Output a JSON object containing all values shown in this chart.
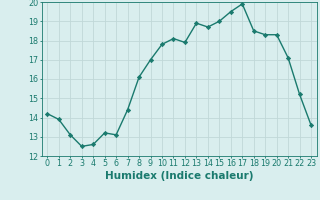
{
  "x": [
    0,
    1,
    2,
    3,
    4,
    5,
    6,
    7,
    8,
    9,
    10,
    11,
    12,
    13,
    14,
    15,
    16,
    17,
    18,
    19,
    20,
    21,
    22,
    23
  ],
  "y": [
    14.2,
    13.9,
    13.1,
    12.5,
    12.6,
    13.2,
    13.1,
    14.4,
    16.1,
    17.0,
    17.8,
    18.1,
    17.9,
    18.9,
    18.7,
    19.0,
    19.5,
    19.9,
    18.5,
    18.3,
    18.3,
    17.1,
    15.2,
    13.6
  ],
  "line_color": "#1a7a6e",
  "marker": "D",
  "marker_size": 2.2,
  "bg_color": "#d9eeee",
  "grid_color": "#c0d8d8",
  "xlabel": "Humidex (Indice chaleur)",
  "xlim": [
    -0.5,
    23.5
  ],
  "ylim": [
    12,
    20
  ],
  "yticks": [
    12,
    13,
    14,
    15,
    16,
    17,
    18,
    19,
    20
  ],
  "xticks": [
    0,
    1,
    2,
    3,
    4,
    5,
    6,
    7,
    8,
    9,
    10,
    11,
    12,
    13,
    14,
    15,
    16,
    17,
    18,
    19,
    20,
    21,
    22,
    23
  ],
  "tick_color": "#1a7a6e",
  "label_color": "#1a7a6e",
  "tick_fontsize": 5.8,
  "xlabel_fontsize": 7.5,
  "linewidth": 1.0
}
